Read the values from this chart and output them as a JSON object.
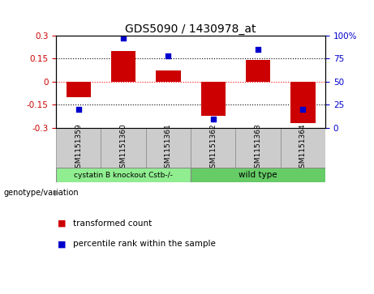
{
  "title": "GDS5090 / 1430978_at",
  "samples": [
    "GSM1151359",
    "GSM1151360",
    "GSM1151361",
    "GSM1151362",
    "GSM1151363",
    "GSM1151364"
  ],
  "bar_values": [
    -0.1,
    0.2,
    0.07,
    -0.22,
    0.14,
    -0.27
  ],
  "scatter_values": [
    20,
    97,
    78,
    10,
    85,
    20
  ],
  "ylim_left": [
    -0.3,
    0.3
  ],
  "ylim_right": [
    0,
    100
  ],
  "yticks_left": [
    -0.3,
    -0.15,
    0,
    0.15,
    0.3
  ],
  "yticks_right": [
    0,
    25,
    50,
    75,
    100
  ],
  "ytick_labels_left": [
    "-0.3",
    "-0.15",
    "0",
    "0.15",
    "0.3"
  ],
  "ytick_labels_right": [
    "0",
    "25",
    "50",
    "75",
    "100%"
  ],
  "hlines": [
    0.15,
    0.0,
    -0.15
  ],
  "hline_colors": [
    "black",
    "red",
    "black"
  ],
  "hline_styles": [
    "dotted",
    "dotted",
    "dotted"
  ],
  "bar_color": "#cc0000",
  "scatter_color": "#0000cc",
  "group1_label": "cystatin B knockout Cstb-/-",
  "group2_label": "wild type",
  "group_label_prefix": "genotype/variation",
  "legend_bar_label": "transformed count",
  "legend_scatter_label": "percentile rank within the sample",
  "group1_color": "#90ee90",
  "group2_color": "#66cc66",
  "sample_box_color": "#cccccc",
  "background_color": "#ffffff"
}
